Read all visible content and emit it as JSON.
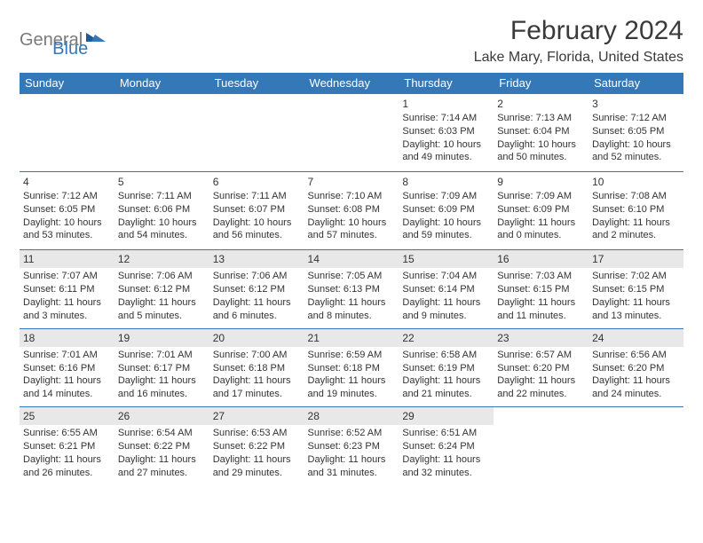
{
  "logo": {
    "general": "General",
    "blue": "Blue"
  },
  "title": "February 2024",
  "location": "Lake Mary, Florida, United States",
  "colors": {
    "header_bg": "#3578b8",
    "header_text": "#ffffff",
    "body_text": "#333333",
    "rule": "#3578b8",
    "shade": "#e8e8e8",
    "logo_gray": "#7a7a7a",
    "logo_blue": "#3578b8"
  },
  "day_headers": [
    "Sunday",
    "Monday",
    "Tuesday",
    "Wednesday",
    "Thursday",
    "Friday",
    "Saturday"
  ],
  "weeks": [
    [
      null,
      null,
      null,
      null,
      {
        "n": "1",
        "sr": "7:14 AM",
        "ss": "6:03 PM",
        "dl": "10 hours and 49 minutes."
      },
      {
        "n": "2",
        "sr": "7:13 AM",
        "ss": "6:04 PM",
        "dl": "10 hours and 50 minutes."
      },
      {
        "n": "3",
        "sr": "7:12 AM",
        "ss": "6:05 PM",
        "dl": "10 hours and 52 minutes."
      }
    ],
    [
      {
        "n": "4",
        "sr": "7:12 AM",
        "ss": "6:05 PM",
        "dl": "10 hours and 53 minutes."
      },
      {
        "n": "5",
        "sr": "7:11 AM",
        "ss": "6:06 PM",
        "dl": "10 hours and 54 minutes."
      },
      {
        "n": "6",
        "sr": "7:11 AM",
        "ss": "6:07 PM",
        "dl": "10 hours and 56 minutes."
      },
      {
        "n": "7",
        "sr": "7:10 AM",
        "ss": "6:08 PM",
        "dl": "10 hours and 57 minutes."
      },
      {
        "n": "8",
        "sr": "7:09 AM",
        "ss": "6:09 PM",
        "dl": "10 hours and 59 minutes."
      },
      {
        "n": "9",
        "sr": "7:09 AM",
        "ss": "6:09 PM",
        "dl": "11 hours and 0 minutes."
      },
      {
        "n": "10",
        "sr": "7:08 AM",
        "ss": "6:10 PM",
        "dl": "11 hours and 2 minutes."
      }
    ],
    [
      {
        "n": "11",
        "sr": "7:07 AM",
        "ss": "6:11 PM",
        "dl": "11 hours and 3 minutes.",
        "shaded": true
      },
      {
        "n": "12",
        "sr": "7:06 AM",
        "ss": "6:12 PM",
        "dl": "11 hours and 5 minutes.",
        "shaded": true
      },
      {
        "n": "13",
        "sr": "7:06 AM",
        "ss": "6:12 PM",
        "dl": "11 hours and 6 minutes.",
        "shaded": true
      },
      {
        "n": "14",
        "sr": "7:05 AM",
        "ss": "6:13 PM",
        "dl": "11 hours and 8 minutes.",
        "shaded": true
      },
      {
        "n": "15",
        "sr": "7:04 AM",
        "ss": "6:14 PM",
        "dl": "11 hours and 9 minutes.",
        "shaded": true
      },
      {
        "n": "16",
        "sr": "7:03 AM",
        "ss": "6:15 PM",
        "dl": "11 hours and 11 minutes.",
        "shaded": true
      },
      {
        "n": "17",
        "sr": "7:02 AM",
        "ss": "6:15 PM",
        "dl": "11 hours and 13 minutes.",
        "shaded": true
      }
    ],
    [
      {
        "n": "18",
        "sr": "7:01 AM",
        "ss": "6:16 PM",
        "dl": "11 hours and 14 minutes.",
        "shaded": true
      },
      {
        "n": "19",
        "sr": "7:01 AM",
        "ss": "6:17 PM",
        "dl": "11 hours and 16 minutes.",
        "shaded": true
      },
      {
        "n": "20",
        "sr": "7:00 AM",
        "ss": "6:18 PM",
        "dl": "11 hours and 17 minutes.",
        "shaded": true
      },
      {
        "n": "21",
        "sr": "6:59 AM",
        "ss": "6:18 PM",
        "dl": "11 hours and 19 minutes.",
        "shaded": true
      },
      {
        "n": "22",
        "sr": "6:58 AM",
        "ss": "6:19 PM",
        "dl": "11 hours and 21 minutes.",
        "shaded": true
      },
      {
        "n": "23",
        "sr": "6:57 AM",
        "ss": "6:20 PM",
        "dl": "11 hours and 22 minutes.",
        "shaded": true
      },
      {
        "n": "24",
        "sr": "6:56 AM",
        "ss": "6:20 PM",
        "dl": "11 hours and 24 minutes.",
        "shaded": true
      }
    ],
    [
      {
        "n": "25",
        "sr": "6:55 AM",
        "ss": "6:21 PM",
        "dl": "11 hours and 26 minutes.",
        "shaded": true
      },
      {
        "n": "26",
        "sr": "6:54 AM",
        "ss": "6:22 PM",
        "dl": "11 hours and 27 minutes.",
        "shaded": true
      },
      {
        "n": "27",
        "sr": "6:53 AM",
        "ss": "6:22 PM",
        "dl": "11 hours and 29 minutes.",
        "shaded": true
      },
      {
        "n": "28",
        "sr": "6:52 AM",
        "ss": "6:23 PM",
        "dl": "11 hours and 31 minutes.",
        "shaded": true
      },
      {
        "n": "29",
        "sr": "6:51 AM",
        "ss": "6:24 PM",
        "dl": "11 hours and 32 minutes.",
        "shaded": true
      },
      null,
      null
    ]
  ],
  "labels": {
    "sunrise": "Sunrise: ",
    "sunset": "Sunset: ",
    "daylight": "Daylight: "
  }
}
